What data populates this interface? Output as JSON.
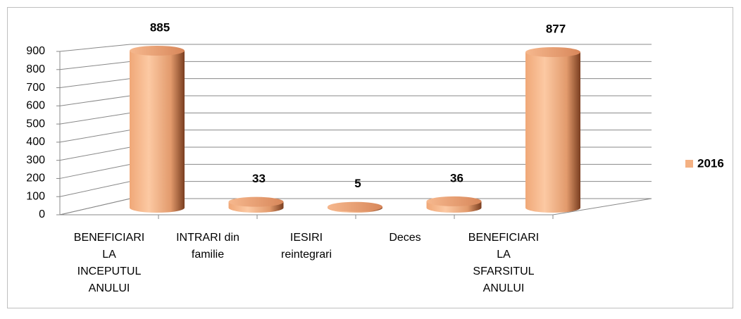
{
  "chart_data": {
    "type": "bar3d",
    "categories": [
      [
        "BENEFICIARI",
        "LA",
        "INCEPUTUL",
        "ANULUI"
      ],
      [
        "INTRARI din",
        "familie"
      ],
      [
        "IESIRI",
        "reintegrari"
      ],
      [
        "Deces"
      ],
      [
        "BENEFICIARI",
        "LA",
        "SFARSITUL",
        "ANULUI"
      ]
    ],
    "series": [
      {
        "name": "2016",
        "color": "#f4b183",
        "values": [
          885,
          33,
          5,
          36,
          877
        ]
      }
    ],
    "ylim": [
      0,
      900
    ],
    "yticks": [
      0,
      100,
      200,
      300,
      400,
      500,
      600,
      700,
      800,
      900
    ],
    "grid": true,
    "legend": "right"
  }
}
